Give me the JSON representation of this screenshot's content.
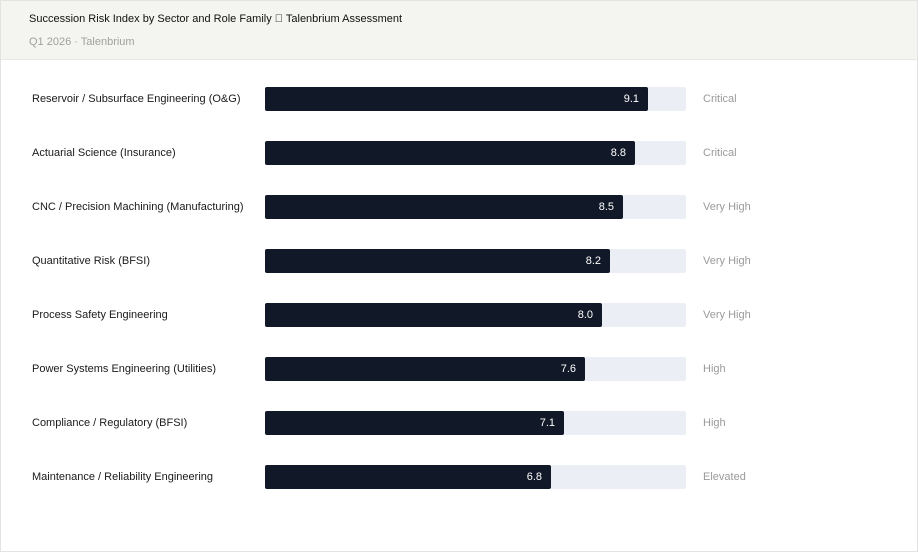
{
  "title": "Succession Risk Index by Sector and Role Family \u0000 Talenbrium Assessment",
  "subtitle": "Q1 2026 · Talenbrium",
  "chart_data": {
    "type": "bar",
    "orientation": "horizontal",
    "xlim": [
      0,
      10
    ],
    "categories": [
      "Reservoir / Subsurface Engineering (O&G)",
      "Actuarial Science (Insurance)",
      "CNC / Precision Machining (Manufacturing)",
      "Quantitative Risk (BFSI)",
      "Process Safety Engineering",
      "Power Systems Engineering (Utilities)",
      "Compliance / Regulatory (BFSI)",
      "Maintenance / Reliability Engineering"
    ],
    "values": [
      9.1,
      8.8,
      8.5,
      8.2,
      8.0,
      7.6,
      7.1,
      6.8
    ],
    "value_labels": [
      "9.1",
      "8.8",
      "8.5",
      "8.2",
      "8.0",
      "7.6",
      "7.1",
      "6.8"
    ],
    "ratings": [
      "Critical",
      "Critical",
      "Very High",
      "Very High",
      "Very High",
      "High",
      "High",
      "Elevated"
    ],
    "colors": {
      "bar": "#111827",
      "track": "#eceef5"
    }
  }
}
